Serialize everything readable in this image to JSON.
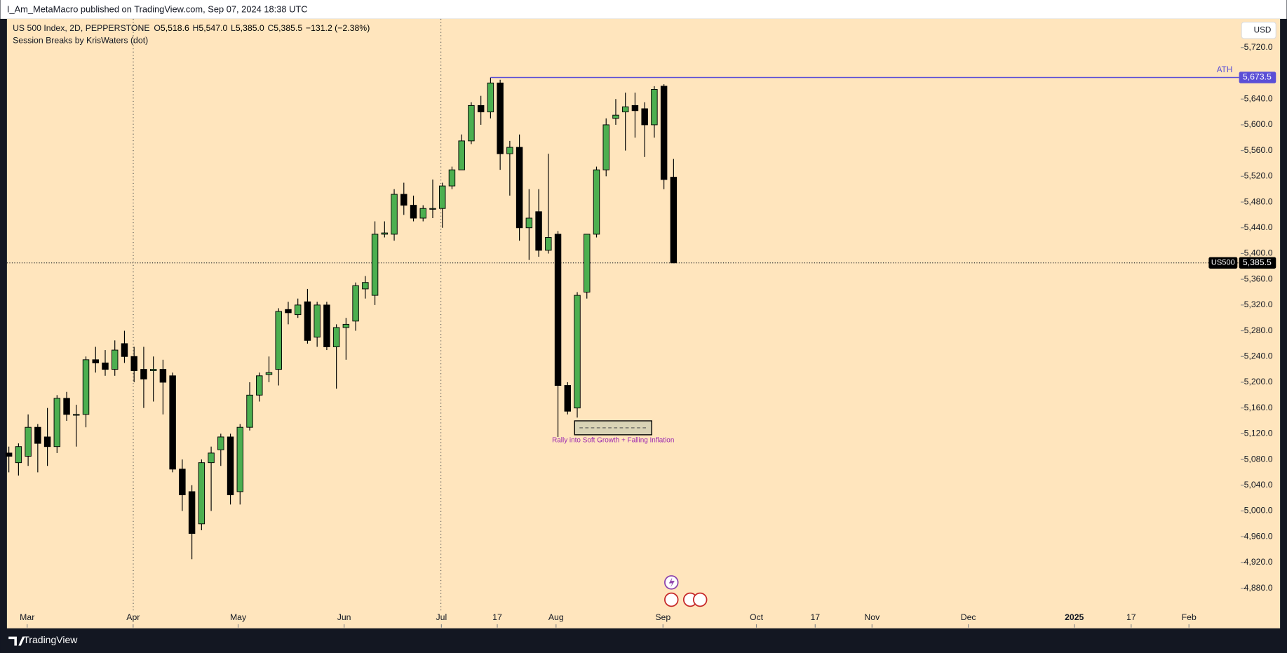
{
  "header": {
    "text": "I_Am_MetaMacro published on TradingView.com, Sep 07, 2024 18:38 UTC"
  },
  "footer": {
    "brand": "TradingView"
  },
  "chart_data": {
    "type": "candlestick",
    "legend": {
      "symbol": "US 500 Index, 2D, PEPPERSTONE",
      "ohlc": [
        {
          "key": "O",
          "value": "5,518.6"
        },
        {
          "key": "H",
          "value": "5,547.0"
        },
        {
          "key": "L",
          "value": "5,385.0"
        },
        {
          "key": "C",
          "value": "5,385.5"
        }
      ],
      "change": "−131.2 (−2.38%)",
      "indicator": "Session Breaks by KrisWaters (dot)"
    },
    "currency": "USD",
    "open": [
      5090,
      5075,
      5085,
      5130,
      5115,
      5100,
      5175,
      5150,
      5150,
      5235,
      5230,
      5220,
      5260,
      5240,
      5220,
      5218,
      5220,
      5210,
      5065,
      5030,
      4980,
      5075,
      5095,
      5115,
      5030,
      5130,
      5180,
      5212,
      5220,
      5313,
      5305,
      5325,
      5270,
      5320,
      5255,
      5285,
      5295,
      5345,
      5335,
      5430,
      5430,
      5492,
      5475,
      5455,
      5470,
      5470,
      5505,
      5530,
      5575,
      5630,
      5620,
      5665,
      5555,
      5565,
      5440,
      5465,
      5405,
      5430,
      5195,
      5160,
      5340,
      5430,
      5530,
      5610,
      5620,
      5630,
      5625,
      5600,
      5660,
      5518.6
    ],
    "high": [
      5100,
      5105,
      5150,
      5135,
      5160,
      5180,
      5185,
      5165,
      5240,
      5255,
      5250,
      5265,
      5280,
      5255,
      5255,
      5240,
      5235,
      5215,
      5080,
      5040,
      5080,
      5100,
      5120,
      5120,
      5135,
      5200,
      5215,
      5240,
      5315,
      5325,
      5330,
      5345,
      5325,
      5325,
      5290,
      5300,
      5355,
      5365,
      5450,
      5450,
      5500,
      5510,
      5490,
      5475,
      5515,
      5510,
      5535,
      5585,
      5635,
      5645,
      5673.5,
      5670,
      5575,
      5585,
      5500,
      5500,
      5555,
      5435,
      5200,
      5340,
      5430,
      5535,
      5610,
      5640,
      5650,
      5650,
      5635,
      5660,
      5663,
      5547
    ],
    "low": [
      5060,
      5055,
      5070,
      5060,
      5070,
      5090,
      5140,
      5100,
      5130,
      5215,
      5210,
      5210,
      5230,
      5200,
      5160,
      5170,
      5150,
      5060,
      5000,
      4925,
      4970,
      5000,
      5070,
      5010,
      5010,
      5125,
      5170,
      5200,
      5195,
      5290,
      5300,
      5260,
      5255,
      5250,
      5190,
      5235,
      5280,
      5330,
      5320,
      5425,
      5420,
      5460,
      5450,
      5450,
      5455,
      5440,
      5500,
      5530,
      5570,
      5600,
      5610,
      5530,
      5490,
      5420,
      5390,
      5395,
      5400,
      5115,
      5150,
      5145,
      5330,
      5425,
      5520,
      5600,
      5560,
      5580,
      5550,
      5580,
      5500,
      5385
    ],
    "close": [
      5085,
      5100,
      5130,
      5105,
      5100,
      5175,
      5150,
      5150,
      5235,
      5230,
      5220,
      5250,
      5240,
      5218,
      5205,
      5220,
      5200,
      5065,
      5025,
      4965,
      5075,
      5090,
      5115,
      5025,
      5130,
      5180,
      5210,
      5215,
      5310,
      5308,
      5320,
      5265,
      5320,
      5255,
      5285,
      5290,
      5350,
      5355,
      5430,
      5432,
      5492,
      5475,
      5455,
      5470,
      5470,
      5505,
      5530,
      5575,
      5630,
      5620,
      5665,
      5555,
      5565,
      5440,
      5455,
      5405,
      5425,
      5195,
      5155,
      5335,
      5430,
      5530,
      5600,
      5615,
      5628,
      5622,
      5600,
      5655,
      5515,
      5385.5
    ],
    "up_color": "#4caf50",
    "down_color": "#000000",
    "xlim": [
      -0.2,
      127.7
    ],
    "xticks": [
      {
        "value": 1.9,
        "label": "Mar"
      },
      {
        "value": 12.9,
        "label": "Apr"
      },
      {
        "value": 23.8,
        "label": "May"
      },
      {
        "value": 34.8,
        "label": "Jun"
      },
      {
        "value": 44.9,
        "label": "Jul"
      },
      {
        "value": 50.7,
        "label": "17"
      },
      {
        "value": 56.8,
        "label": "Aug"
      },
      {
        "value": 67.9,
        "label": "Sep"
      },
      {
        "value": 77.6,
        "label": "Oct"
      },
      {
        "value": 83.7,
        "label": "17"
      },
      {
        "value": 89.6,
        "label": "Nov"
      },
      {
        "value": 99.6,
        "label": "Dec"
      },
      {
        "value": 110.6,
        "label": "2025"
      },
      {
        "value": 116.5,
        "label": "17"
      },
      {
        "value": 122.5,
        "label": "Feb"
      }
    ],
    "ylim": [
      4818.8,
      5764.6
    ],
    "yticks": [
      {
        "value": 4880,
        "label": "4,880.0"
      },
      {
        "value": 4920,
        "label": "4,920.0"
      },
      {
        "value": 4960,
        "label": "4,960.0"
      },
      {
        "value": 5000,
        "label": "5,000.0"
      },
      {
        "value": 5040,
        "label": "5,040.0"
      },
      {
        "value": 5080,
        "label": "5,080.0"
      },
      {
        "value": 5120,
        "label": "5,120.0"
      },
      {
        "value": 5160,
        "label": "5,160.0"
      },
      {
        "value": 5200,
        "label": "5,200.0"
      },
      {
        "value": 5240,
        "label": "5,240.0"
      },
      {
        "value": 5280,
        "label": "5,280.0"
      },
      {
        "value": 5320,
        "label": "5,320.0"
      },
      {
        "value": 5360,
        "label": "5,360.0"
      },
      {
        "value": 5400,
        "label": "5,400.0"
      },
      {
        "value": 5440,
        "label": "5,440.0"
      },
      {
        "value": 5480,
        "label": "5,480.0"
      },
      {
        "value": 5520,
        "label": "5,520.0"
      },
      {
        "value": 5560,
        "label": "5,560.0"
      },
      {
        "value": 5600,
        "label": "5,600.0"
      },
      {
        "value": 5640,
        "label": "5,640.0"
      },
      {
        "value": 5720,
        "label": "5,720.0"
      }
    ],
    "ath": {
      "value": 5673.5,
      "label": "5,673.5",
      "text": "ATH",
      "color": "#5b4fd6"
    },
    "last_price": {
      "value": 5385.5,
      "label": "5,385.5",
      "symbol": "US500"
    },
    "annotation": "Rally into Soft Growth + Falling Inflation"
  }
}
